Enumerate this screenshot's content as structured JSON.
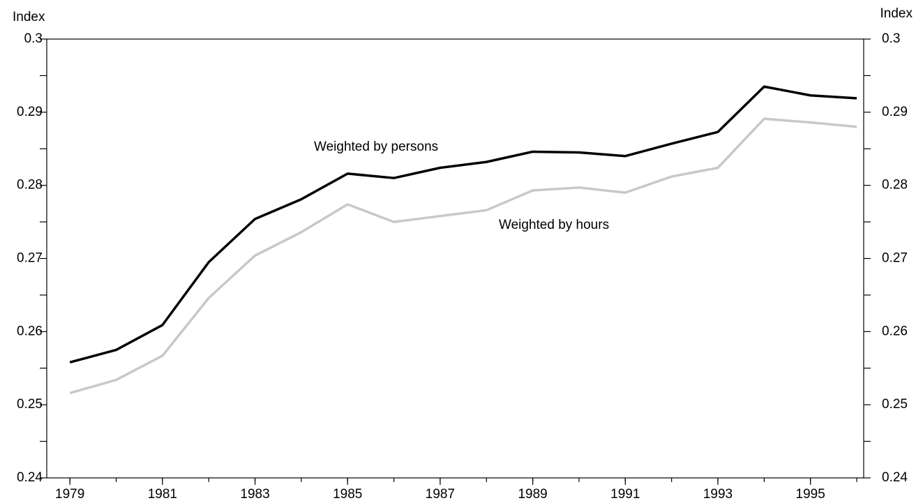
{
  "chart_data": {
    "type": "line",
    "y_label": "Index",
    "y2_label": "Index",
    "x": [
      1979,
      1980,
      1981,
      1982,
      1983,
      1984,
      1985,
      1986,
      1987,
      1988,
      1989,
      1990,
      1991,
      1992,
      1993,
      1994,
      1995,
      1996
    ],
    "xlim": [
      1978.5,
      1996.15
    ],
    "xticks": [
      1979,
      1981,
      1983,
      1985,
      1987,
      1989,
      1991,
      1993,
      1995
    ],
    "ylim": [
      0.24,
      0.3
    ],
    "yticks": [
      0.24,
      0.25,
      0.26,
      0.27,
      0.28,
      0.29,
      0.3
    ],
    "yminorticks": [
      0.245,
      0.255,
      0.265,
      0.275,
      0.285,
      0.295
    ],
    "y2lim": [
      0.24,
      0.3
    ],
    "y2ticks": [
      0.24,
      0.25,
      0.26,
      0.27,
      0.28,
      0.29,
      0.3
    ],
    "series": [
      {
        "name": "Weighted by persons",
        "color": "#000000",
        "values": [
          0.2558,
          0.2575,
          0.2609,
          0.2695,
          0.2754,
          0.2781,
          0.2816,
          0.281,
          0.2824,
          0.2832,
          0.2846,
          0.2845,
          0.284,
          0.2857,
          0.2873,
          0.2935,
          0.2923,
          0.2919
        ]
      },
      {
        "name": "Weighted by hours",
        "color": "#c8c8c8",
        "values": [
          0.2516,
          0.2534,
          0.2567,
          0.2646,
          0.2704,
          0.2736,
          0.2774,
          0.275,
          0.2758,
          0.2766,
          0.2793,
          0.2797,
          0.279,
          0.2812,
          0.2824,
          0.2891,
          0.2886,
          0.288
        ]
      }
    ]
  }
}
